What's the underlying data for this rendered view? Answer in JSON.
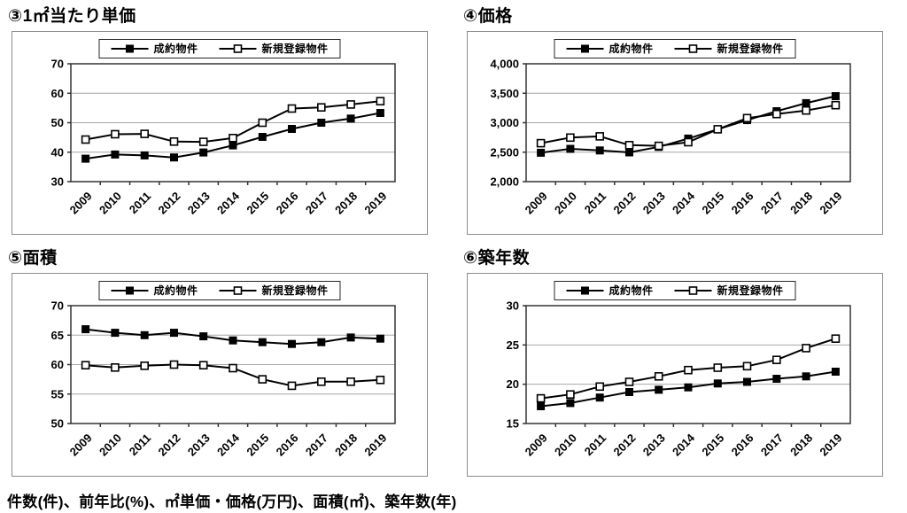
{
  "footnote": "件数(件)、前年比(%)、㎡単価・価格(万円)、面積(㎡)、築年数(年)",
  "colors": {
    "series_line": "#000000",
    "grid_line": "#a6a6a6",
    "axis_line": "#333333",
    "panel_border": "#8c8c8c"
  },
  "chart_data": [
    {
      "id": "unit-price",
      "type": "line",
      "title": "③1㎡当たり単価",
      "categories": [
        "2009",
        "2010",
        "2011",
        "2012",
        "2013",
        "2014",
        "2015",
        "2016",
        "2017",
        "2018",
        "2019"
      ],
      "series": [
        {
          "name": "成約物件",
          "marker": "filled-square",
          "values": [
            37.8,
            39.2,
            38.9,
            38.2,
            39.9,
            42.3,
            45.2,
            47.9,
            50.0,
            51.4,
            53.3
          ]
        },
        {
          "name": "新規登録物件",
          "marker": "open-square",
          "values": [
            44.3,
            46.1,
            46.2,
            43.6,
            43.5,
            44.8,
            50.0,
            54.8,
            55.2,
            56.2,
            57.3
          ]
        }
      ],
      "ylim": [
        30,
        70
      ],
      "yticks": [
        30,
        40,
        50,
        60,
        70
      ],
      "ytick_labels": [
        "30",
        "40",
        "50",
        "60",
        "70"
      ],
      "legend_position": "top",
      "grid": "horizontal"
    },
    {
      "id": "price",
      "type": "line",
      "title": "④価格",
      "categories": [
        "2009",
        "2010",
        "2011",
        "2012",
        "2013",
        "2014",
        "2015",
        "2016",
        "2017",
        "2018",
        "2019"
      ],
      "series": [
        {
          "name": "成約物件",
          "marker": "filled-square",
          "values": [
            2490,
            2556,
            2530,
            2496,
            2589,
            2731,
            2889,
            3043,
            3196,
            3332,
            3451
          ]
        },
        {
          "name": "新規登録物件",
          "marker": "open-square",
          "values": [
            2653,
            2748,
            2768,
            2619,
            2608,
            2669,
            2889,
            3078,
            3148,
            3207,
            3297
          ]
        }
      ],
      "ylim": [
        2000,
        4000
      ],
      "yticks": [
        2000,
        2500,
        3000,
        3500,
        4000
      ],
      "ytick_labels": [
        "2,000",
        "2,500",
        "3,000",
        "3,500",
        "4,000"
      ],
      "legend_position": "top",
      "grid": "horizontal"
    },
    {
      "id": "area",
      "type": "line",
      "title": "⑤面積",
      "categories": [
        "2009",
        "2010",
        "2011",
        "2012",
        "2013",
        "2014",
        "2015",
        "2016",
        "2017",
        "2018",
        "2019"
      ],
      "series": [
        {
          "name": "成約物件",
          "marker": "filled-square",
          "values": [
            66.0,
            65.4,
            65.0,
            65.4,
            64.8,
            64.1,
            63.8,
            63.5,
            63.8,
            64.6,
            64.4
          ]
        },
        {
          "name": "新規登録物件",
          "marker": "open-square",
          "values": [
            59.9,
            59.5,
            59.8,
            60.0,
            59.9,
            59.4,
            57.5,
            56.4,
            57.1,
            57.1,
            57.4
          ]
        }
      ],
      "ylim": [
        50,
        70
      ],
      "yticks": [
        50,
        55,
        60,
        65,
        70
      ],
      "ytick_labels": [
        "50",
        "55",
        "60",
        "65",
        "70"
      ],
      "legend_position": "top",
      "grid": "horizontal"
    },
    {
      "id": "building-age",
      "type": "line",
      "title": "⑥築年数",
      "categories": [
        "2009",
        "2010",
        "2011",
        "2012",
        "2013",
        "2014",
        "2015",
        "2016",
        "2017",
        "2018",
        "2019"
      ],
      "series": [
        {
          "name": "成約物件",
          "marker": "filled-square",
          "values": [
            17.2,
            17.6,
            18.3,
            19.0,
            19.3,
            19.6,
            20.1,
            20.3,
            20.7,
            21.0,
            21.6
          ]
        },
        {
          "name": "新規登録物件",
          "marker": "open-square",
          "values": [
            18.2,
            18.7,
            19.7,
            20.3,
            21.0,
            21.8,
            22.1,
            22.3,
            23.1,
            24.6,
            25.8
          ]
        }
      ],
      "ylim": [
        15,
        30
      ],
      "yticks": [
        15,
        20,
        25,
        30
      ],
      "ytick_labels": [
        "15",
        "20",
        "25",
        "30"
      ],
      "legend_position": "top",
      "grid": "horizontal"
    }
  ]
}
